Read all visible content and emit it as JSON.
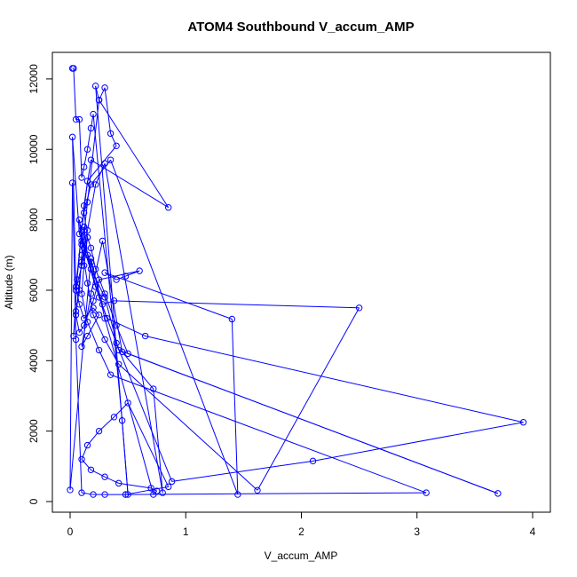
{
  "chart_data": {
    "type": "line",
    "title": "ATOM4 Southbound V_accum_AMP",
    "xlabel": "V_accum_AMP",
    "ylabel": "Altitude (m)",
    "xlim": [
      0,
      4
    ],
    "ylim": [
      0,
      12500
    ],
    "xticks": [
      0,
      1,
      2,
      3,
      4
    ],
    "yticks": [
      0,
      2000,
      4000,
      6000,
      8000,
      10000,
      12000
    ],
    "series_color": "#0000ff",
    "marker": "open-circle",
    "grid": false,
    "legend": "none",
    "series": [
      {
        "x": [
          0.02,
          0.03,
          0.05,
          0.08,
          0.1,
          0.12,
          0.15,
          0.18,
          0.2,
          0.45,
          0.5,
          0.22,
          0.25,
          0.15,
          0.1,
          0.08,
          0.05,
          0.03,
          0.06,
          0.12,
          0.18,
          0.85,
          0.25,
          0.3,
          0.35,
          0.4,
          0.15,
          0.1,
          0.05,
          0.08,
          0.12,
          0.2,
          0.25,
          0.15,
          0.1,
          0.18,
          0.28,
          0.45,
          0.72,
          0.8,
          0.3,
          0.22,
          0.15,
          0.1,
          0.05,
          0.08,
          0.12,
          0.2,
          0.25,
          0.6,
          0.48,
          0.4,
          0.3,
          1.4,
          1.45,
          0.35,
          0.18,
          0.12,
          0.15,
          0.1,
          0.05,
          0.02,
          0.08,
          0.18,
          0.28,
          0.38,
          2.5,
          1.62,
          0.42,
          0.3,
          0.2,
          0.15,
          0.1,
          0.08,
          0.12,
          0.22,
          0.32,
          0.65,
          3.92,
          2.1,
          0.88,
          0.4,
          0.25,
          0.15,
          0.12,
          0.1,
          0.18,
          0.3,
          0.42,
          3.7,
          0.5,
          0.4,
          0.3,
          0.22,
          0.18,
          0.15,
          0.12,
          0.1,
          0.15,
          0.25,
          0.35,
          3.08,
          0.48,
          0.3,
          0.2,
          0.1,
          0.05,
          0.02,
          0.0,
          0.18,
          0.3,
          0.72,
          0.75,
          0.7,
          0.42,
          0.3,
          0.18,
          0.1,
          0.15,
          0.25,
          0.38,
          0.5,
          0.85,
          0.48
        ],
        "y": [
          12300,
          12300,
          10850,
          10850,
          9200,
          9500,
          10000,
          10600,
          11000,
          2300,
          200,
          11800,
          11400,
          8500,
          7000,
          6000,
          5400,
          4700,
          6300,
          8400,
          9700,
          8350,
          11400,
          11750,
          10450,
          10100,
          9100,
          7700,
          6100,
          5600,
          5200,
          5500,
          5300,
          4700,
          4400,
          5900,
          7400,
          4250,
          3200,
          250,
          9600,
          9000,
          7700,
          6800,
          5300,
          4800,
          5000,
          5700,
          6300,
          6550,
          6400,
          6300,
          6500,
          5180,
          200,
          9700,
          9000,
          8200,
          7500,
          6700,
          6000,
          10350,
          7600,
          6800,
          5600,
          5700,
          5500,
          320,
          3900,
          4600,
          5300,
          6200,
          7300,
          8000,
          7200,
          6100,
          5200,
          4700,
          2250,
          1150,
          570,
          4500,
          5800,
          7000,
          7800,
          7400,
          6600,
          5800,
          4300,
          230,
          4200,
          5000,
          5900,
          6600,
          7200,
          7500,
          6700,
          5900,
          5100,
          4300,
          3600,
          250,
          200,
          200,
          200,
          250,
          4600,
          9050,
          330,
          6900,
          5200,
          200,
          300,
          380,
          520,
          700,
          900,
          1200,
          1600,
          2000,
          2400,
          2800,
          420,
          200
        ]
      }
    ]
  }
}
